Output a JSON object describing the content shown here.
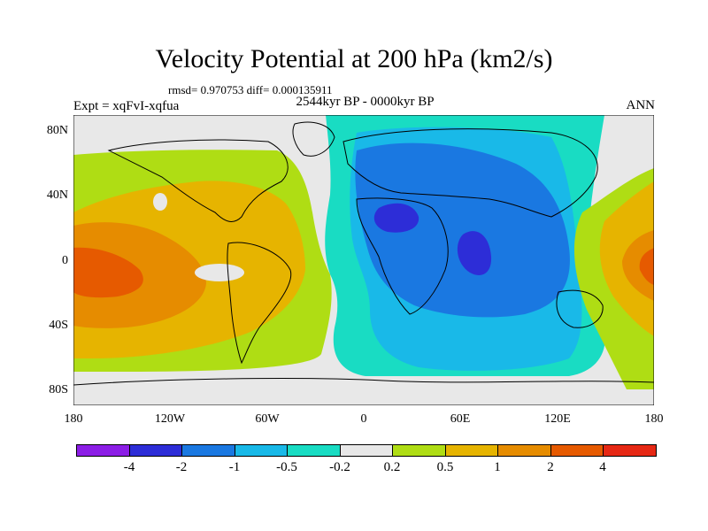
{
  "header": {
    "title": "Velocity Potential at 200 hPa (km2/s)",
    "stats": "rmsd= 0.970753 diff= 0.000135911",
    "experiment": "Expt = xqFvI-xqfua",
    "period": "2544kyr BP - 0000kyr BP",
    "season": "ANN"
  },
  "map": {
    "lat_labels": [
      "80N",
      "40N",
      "0",
      "40S",
      "80S"
    ],
    "lon_labels": [
      "180",
      "120W",
      "60W",
      "0",
      "60E",
      "120E",
      "180"
    ]
  },
  "colorbar": {
    "colors": [
      "#8c1ee6",
      "#2d2dd7",
      "#1a78e1",
      "#19b9e8",
      "#19dcc3",
      "#e8e8e8",
      "#afdd14",
      "#e6b400",
      "#e68c00",
      "#e65a00",
      "#e62814"
    ],
    "labels": [
      "-4",
      "-2",
      "-1",
      "-0.5",
      "-0.2",
      "0.2",
      "0.5",
      "1",
      "2",
      "4"
    ]
  }
}
